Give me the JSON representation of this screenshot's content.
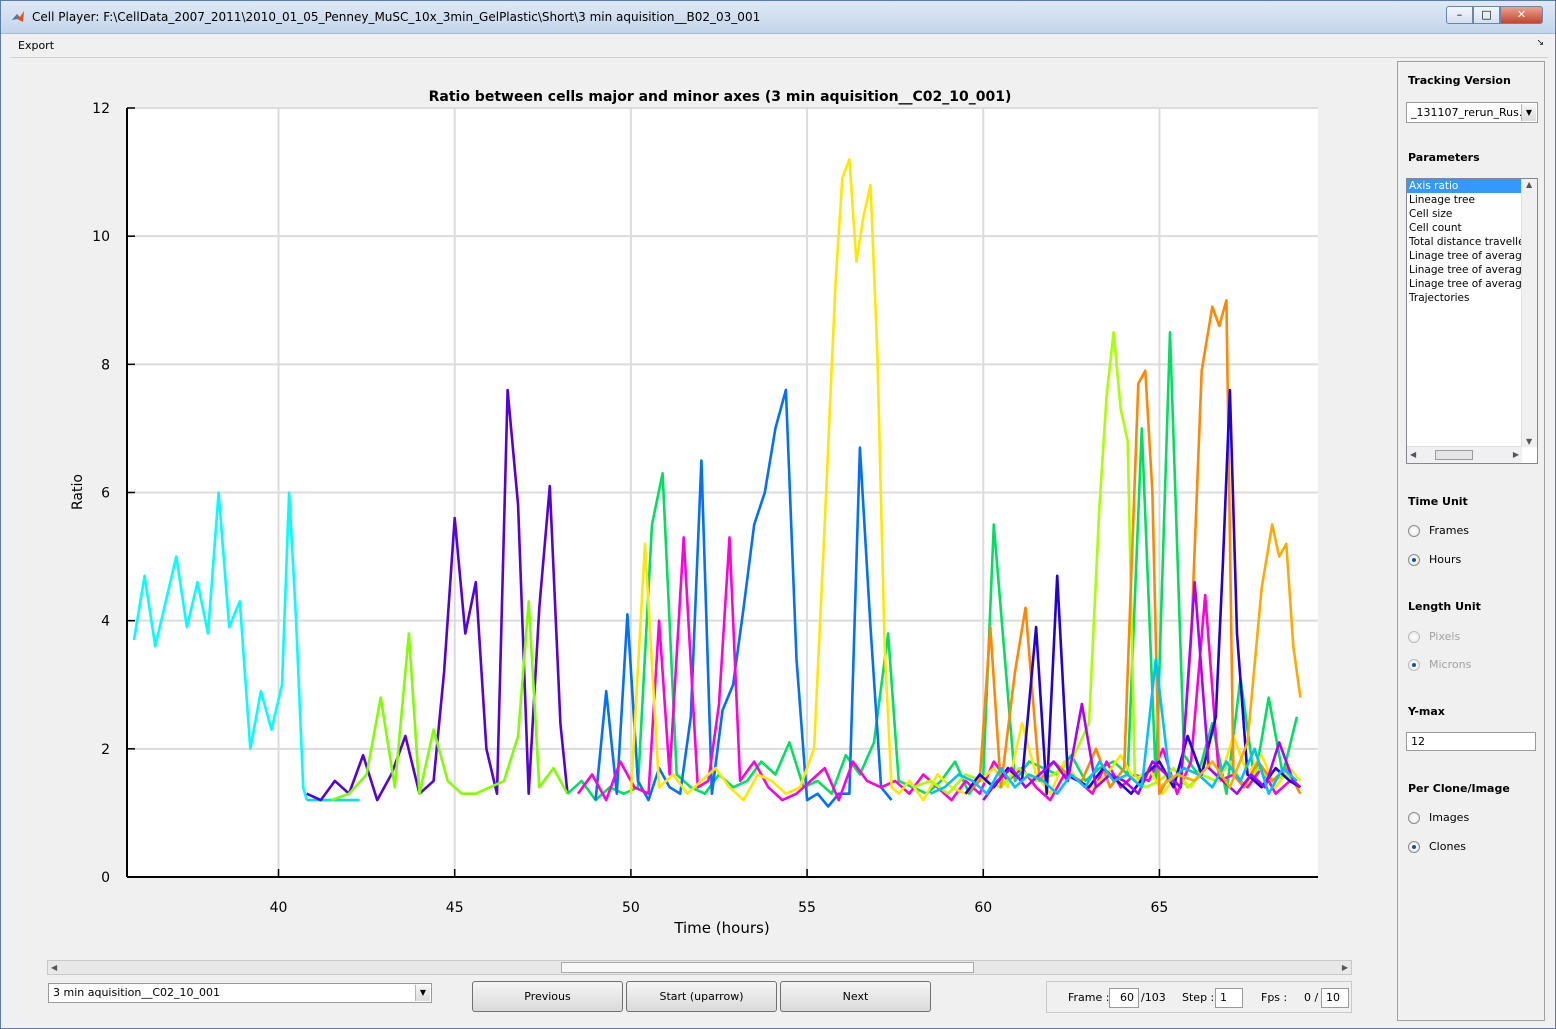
{
  "window": {
    "title": "Cell Player: F:\\CellData_2007_2011\\2010_01_05_Penney_MuSC_10x_3min_GelPlastic\\Short\\3 min aquisition__B02_03_001",
    "min_glyph": "–",
    "max_glyph": "□",
    "close_glyph": "✕"
  },
  "menu": {
    "export_label": "Export",
    "dock_glyph": "↘"
  },
  "chart_data": {
    "type": "line",
    "title": "Ratio between cells major and minor axes (3 min aquisition__C02_10_001)",
    "xlabel": "Time (hours)",
    "ylabel": "Ratio",
    "xlim": [
      35.7,
      69.5
    ],
    "ylim": [
      0,
      12
    ],
    "xticks": [
      40,
      45,
      50,
      55,
      60,
      65
    ],
    "yticks": [
      0,
      2,
      4,
      6,
      8,
      10,
      12
    ],
    "grid": true,
    "series": [
      {
        "color": "#00ffff",
        "x": [
          35.9,
          36.2,
          36.5,
          36.8,
          37.1,
          37.4,
          37.7,
          38.0,
          38.3,
          38.6,
          38.9,
          39.2,
          39.5,
          39.8,
          40.1,
          40.3,
          40.5,
          40.7,
          40.8
        ],
        "y": [
          3.7,
          4.7,
          3.6,
          4.3,
          5.0,
          3.9,
          4.6,
          3.8,
          6.0,
          3.9,
          4.3,
          2.0,
          2.9,
          2.3,
          3.0,
          6.0,
          4.0,
          1.4,
          1.2
        ]
      },
      {
        "color": "#00e0e8",
        "x": [
          40.8,
          41.3,
          41.8,
          42.3
        ],
        "y": [
          1.2,
          1.2,
          1.2,
          1.2
        ]
      },
      {
        "color": "#5500dd",
        "x": [
          40.8,
          41.2,
          41.6,
          42.0,
          42.4,
          42.8,
          43.2,
          43.6,
          44.0,
          44.4,
          44.7,
          45.0,
          45.3,
          45.6,
          45.9,
          46.2,
          46.5,
          46.8,
          47.1,
          47.4,
          47.7,
          48.0,
          48.2
        ],
        "y": [
          1.3,
          1.2,
          1.5,
          1.3,
          1.9,
          1.2,
          1.6,
          2.2,
          1.3,
          1.5,
          3.2,
          5.6,
          3.8,
          4.6,
          2.0,
          1.3,
          7.6,
          5.8,
          1.3,
          4.2,
          6.1,
          2.4,
          1.3
        ]
      },
      {
        "color": "#80ff00",
        "x": [
          41.5,
          42.0,
          42.5,
          42.9,
          43.3,
          43.7,
          44.0,
          44.4,
          44.8,
          45.2,
          45.6,
          46.0,
          46.4,
          46.8,
          47.1,
          47.4,
          47.8,
          48.2
        ],
        "y": [
          1.2,
          1.3,
          1.6,
          2.8,
          1.4,
          3.8,
          1.3,
          2.3,
          1.5,
          1.3,
          1.3,
          1.4,
          1.5,
          2.2,
          4.3,
          1.4,
          1.7,
          1.3
        ]
      },
      {
        "color": "#00e060",
        "x": [
          48.2,
          48.6,
          49.0,
          49.4,
          49.8,
          50.2,
          50.6,
          50.9,
          51.3,
          51.7,
          52.1,
          52.5,
          52.9,
          53.3,
          53.7,
          54.1,
          54.5,
          54.9,
          55.3,
          55.7,
          56.1,
          56.5,
          56.9,
          57.3,
          57.6,
          58.0,
          58.4,
          58.8,
          59.2,
          59.6,
          60.0,
          60.3,
          60.6,
          60.9,
          61.3,
          61.7,
          62.1,
          62.5,
          62.9,
          63.3,
          63.7,
          64.1,
          64.5,
          64.9,
          65.3,
          65.7,
          66.1,
          66.5,
          66.9,
          67.3,
          67.7,
          68.1,
          68.5,
          68.9
        ],
        "y": [
          1.3,
          1.5,
          1.2,
          1.4,
          1.3,
          1.4,
          5.5,
          6.3,
          1.6,
          1.4,
          1.3,
          1.6,
          1.4,
          1.5,
          1.8,
          1.6,
          2.1,
          1.4,
          1.5,
          1.3,
          1.9,
          1.6,
          2.1,
          3.8,
          1.5,
          1.4,
          1.3,
          1.5,
          1.8,
          1.3,
          1.6,
          5.5,
          3.5,
          1.5,
          1.8,
          1.7,
          1.6,
          1.9,
          1.5,
          1.7,
          1.8,
          1.6,
          7.0,
          1.5,
          8.5,
          1.9,
          1.6,
          2.4,
          1.3,
          3.1,
          1.5,
          2.8,
          1.6,
          2.5
        ]
      },
      {
        "color": "#0070ff",
        "x": [
          49.0,
          49.3,
          49.6,
          49.9,
          50.2,
          50.5,
          50.8,
          51.1,
          51.4,
          51.7,
          52.0,
          52.3,
          52.6,
          52.9,
          53.2,
          53.5,
          53.8,
          54.1,
          54.4,
          54.7,
          55.0,
          55.3,
          55.6,
          55.9,
          56.2,
          56.5,
          56.8,
          57.1,
          57.4
        ],
        "y": [
          1.2,
          2.9,
          1.3,
          4.1,
          1.5,
          1.2,
          1.7,
          1.4,
          1.3,
          2.5,
          6.5,
          1.3,
          2.6,
          3.0,
          4.2,
          5.5,
          6.0,
          7.0,
          7.6,
          3.4,
          1.2,
          1.3,
          1.1,
          1.3,
          1.3,
          6.7,
          3.9,
          1.4,
          1.2
        ]
      },
      {
        "color": "#ff00dd",
        "x": [
          48.5,
          48.9,
          49.3,
          49.7,
          50.1,
          50.5,
          50.8,
          51.1,
          51.5,
          51.9,
          52.2,
          52.5,
          52.8,
          53.1,
          53.5,
          53.9,
          54.3,
          54.7,
          55.1,
          55.5,
          55.9,
          56.3,
          56.7,
          57.1,
          57.5,
          57.9,
          58.3,
          58.7,
          59.1,
          59.5,
          59.9,
          60.3,
          60.7,
          61.1,
          61.5,
          61.9,
          62.3,
          62.7,
          63.1,
          63.5,
          63.9,
          64.3,
          64.7,
          65.1,
          65.5,
          65.9,
          66.3,
          66.7,
          67.1,
          67.5,
          67.9,
          68.3,
          68.7,
          69.0
        ],
        "y": [
          1.3,
          1.6,
          1.2,
          1.8,
          1.4,
          1.3,
          4.0,
          1.6,
          5.3,
          1.4,
          1.5,
          2.7,
          5.3,
          1.5,
          1.8,
          1.4,
          1.2,
          1.3,
          1.5,
          1.7,
          1.2,
          1.8,
          1.5,
          1.4,
          1.5,
          1.3,
          1.6,
          1.4,
          1.2,
          1.5,
          1.3,
          1.8,
          1.5,
          1.7,
          1.4,
          1.2,
          1.6,
          1.5,
          1.3,
          1.8,
          1.4,
          1.6,
          1.5,
          2.0,
          1.3,
          1.8,
          4.4,
          1.5,
          1.6,
          1.4,
          1.7,
          1.3,
          1.5,
          1.4
        ]
      },
      {
        "color": "#ffe800",
        "x": [
          50.0,
          50.4,
          50.8,
          51.2,
          51.6,
          52.0,
          52.4,
          52.8,
          53.2,
          53.6,
          54.0,
          54.4,
          54.8,
          55.2,
          55.5,
          55.8,
          56.0,
          56.2,
          56.4,
          56.6,
          56.8,
          57.0,
          57.2,
          57.4,
          57.6,
          57.9,
          58.3,
          58.7,
          59.1,
          59.5,
          59.9,
          60.3,
          60.7,
          61.1,
          61.5,
          61.9,
          62.3,
          62.7,
          63.1,
          63.5,
          63.9,
          64.3,
          64.7,
          65.1,
          65.5,
          65.9,
          66.3,
          66.7,
          67.1,
          67.5,
          67.9,
          68.3,
          68.7,
          69.0
        ],
        "y": [
          1.3,
          5.2,
          1.4,
          1.6,
          1.3,
          1.5,
          1.7,
          1.4,
          1.2,
          1.6,
          1.5,
          1.3,
          1.4,
          2.0,
          5.5,
          9.2,
          10.9,
          11.2,
          9.6,
          10.3,
          10.8,
          8.1,
          3.6,
          1.4,
          1.3,
          1.5,
          1.2,
          1.6,
          1.4,
          1.3,
          1.5,
          1.7,
          1.4,
          2.4,
          1.6,
          1.3,
          1.8,
          1.5,
          1.4,
          1.6,
          1.9,
          1.5,
          1.7,
          1.3,
          1.6,
          1.4,
          1.8,
          1.5,
          2.2,
          1.6,
          1.9,
          1.4,
          1.7,
          1.5
        ]
      },
      {
        "color": "#aaff00",
        "x": [
          58.0,
          58.5,
          59.0,
          59.5,
          60.0,
          60.5,
          61.0,
          61.5,
          62.0,
          62.5,
          63.0,
          63.3,
          63.5,
          63.7,
          63.9,
          64.1,
          64.3,
          64.6,
          65.0,
          65.4,
          65.8,
          66.2,
          66.6,
          67.0,
          67.4,
          67.8,
          68.2,
          68.6,
          69.0
        ],
        "y": [
          1.4,
          1.5,
          1.3,
          1.6,
          1.5,
          1.4,
          1.7,
          1.5,
          1.6,
          1.8,
          2.4,
          5.8,
          7.5,
          8.5,
          7.3,
          6.8,
          1.6,
          1.4,
          1.5,
          1.7,
          1.4,
          1.6,
          1.5,
          1.8,
          1.4,
          1.7,
          1.5,
          1.6,
          1.4
        ]
      },
      {
        "color": "#ff8800",
        "x": [
          59.5,
          59.9,
          60.2,
          60.5,
          60.9,
          61.2,
          61.6,
          62.0,
          62.4,
          62.8,
          63.2,
          63.6,
          64.0,
          64.4,
          64.6,
          64.8,
          65.0,
          65.3,
          65.6,
          65.9,
          66.2,
          66.5,
          66.7,
          66.9,
          67.1,
          67.4,
          67.8,
          68.2,
          68.6,
          69.0
        ],
        "y": [
          1.3,
          1.5,
          3.9,
          1.4,
          3.2,
          4.2,
          1.5,
          1.8,
          1.6,
          1.5,
          2.0,
          1.4,
          1.7,
          7.7,
          7.9,
          6.0,
          1.3,
          1.6,
          1.4,
          3.7,
          7.9,
          8.9,
          8.6,
          9.0,
          1.6,
          1.4,
          1.8,
          1.5,
          1.7,
          1.3
        ]
      },
      {
        "color": "#2200dd",
        "x": [
          59.5,
          59.9,
          60.3,
          60.7,
          61.1,
          61.5,
          61.8,
          62.1,
          62.4,
          62.7,
          63.0,
          63.4,
          63.8,
          64.2,
          64.6,
          65.0,
          65.4,
          65.8,
          66.2,
          66.6,
          66.8,
          67.0,
          67.2,
          67.5,
          67.9,
          68.3,
          68.7,
          69.0
        ],
        "y": [
          1.3,
          1.6,
          1.4,
          1.7,
          1.5,
          3.9,
          1.3,
          4.7,
          1.6,
          1.5,
          1.4,
          1.7,
          1.5,
          1.3,
          1.6,
          1.8,
          1.4,
          2.2,
          1.6,
          2.5,
          4.9,
          7.6,
          3.8,
          1.6,
          1.4,
          1.7,
          1.5,
          1.4
        ]
      },
      {
        "color": "#aa00ff",
        "x": [
          60.0,
          60.4,
          60.8,
          61.2,
          61.6,
          62.0,
          62.4,
          62.8,
          63.2,
          63.6,
          64.0,
          64.4,
          64.8,
          65.2,
          65.6,
          66.0,
          66.4,
          66.8,
          67.2,
          67.6,
          68.0,
          68.4,
          68.8,
          69.0
        ],
        "y": [
          1.2,
          1.5,
          1.7,
          1.4,
          1.6,
          1.8,
          1.5,
          2.7,
          1.4,
          1.6,
          1.5,
          1.3,
          1.8,
          1.6,
          1.4,
          4.6,
          1.7,
          1.5,
          1.3,
          1.6,
          1.4,
          2.1,
          1.5,
          1.4
        ]
      },
      {
        "color": "#00c0ff",
        "x": [
          58.5,
          58.9,
          59.3,
          59.7,
          60.1,
          60.5,
          60.9,
          61.3,
          61.7,
          62.1,
          62.5,
          62.9,
          63.3,
          63.7,
          64.1,
          64.5,
          64.9,
          65.3,
          65.7,
          66.1,
          66.5,
          66.9,
          67.3,
          67.7,
          68.1,
          68.5,
          68.9
        ],
        "y": [
          1.3,
          1.4,
          1.6,
          1.5,
          1.3,
          1.7,
          1.4,
          1.6,
          1.5,
          1.3,
          1.6,
          1.4,
          1.8,
          1.5,
          1.6,
          1.4,
          3.4,
          1.5,
          1.7,
          1.6,
          1.4,
          1.8,
          1.5,
          2.0,
          1.3,
          1.7,
          1.5
        ]
      },
      {
        "color": "#ffaa00",
        "x": [
          65.0,
          65.5,
          66.0,
          66.5,
          67.0,
          67.5,
          67.9,
          68.2,
          68.4,
          68.6,
          68.8,
          69.0
        ],
        "y": [
          1.4,
          1.6,
          1.5,
          1.8,
          1.4,
          2.1,
          4.5,
          5.5,
          5.0,
          5.2,
          3.6,
          2.8
        ]
      }
    ]
  },
  "right_panel": {
    "tracking_version_label": "Tracking Version",
    "tracking_version_value": "_131107_rerun_Rus...",
    "parameters_label": "Parameters",
    "parameters": [
      "Axis ratio",
      "Lineage tree",
      "Cell size",
      "Cell count",
      "Total distance travelled",
      "Linage tree of average",
      "Linage tree of average",
      "Linage tree of average",
      "Trajectories"
    ],
    "selected_parameter_index": 0,
    "time_unit_label": "Time Unit",
    "time_unit_options": [
      "Frames",
      "Hours"
    ],
    "time_unit_selected": "Hours",
    "length_unit_label": "Length Unit",
    "length_unit_options": [
      "Pixels",
      "Microns"
    ],
    "length_unit_selected": "Microns",
    "ymax_label": "Y-max",
    "ymax_value": "12",
    "per_label": "Per Clone/Image",
    "per_options": [
      "Images",
      "Clones"
    ],
    "per_selected": "Clones"
  },
  "bottom": {
    "image_select_value": "3 min aquisition__C02_10_001",
    "previous_label": "Previous",
    "start_label": "Start (uparrow)",
    "next_label": "Next",
    "frame_label": "Frame :",
    "frame_value": "60",
    "frame_total": "/103",
    "step_label": "Step :",
    "step_value": "1",
    "fps_label": "Fps :",
    "fps_current": "0 /",
    "fps_value": "10"
  }
}
